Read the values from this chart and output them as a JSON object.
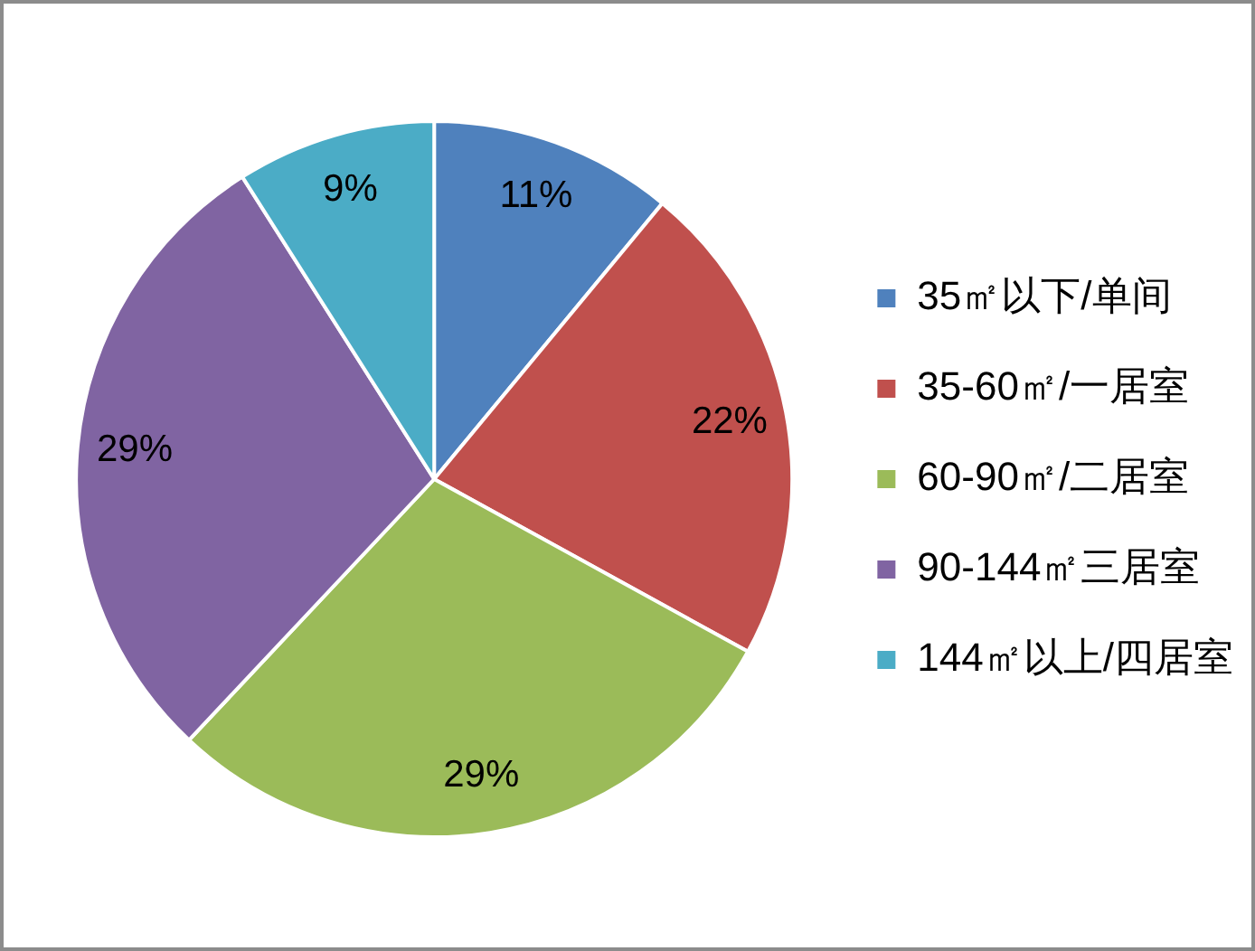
{
  "chart_data": {
    "type": "pie",
    "categories": [
      "35㎡以下/单间",
      "35-60㎡/一居室",
      "60-90㎡/二居室",
      "90-144㎡三居室",
      "144㎡以上/四居室"
    ],
    "values": [
      11,
      22,
      29,
      29,
      9
    ],
    "colors": [
      "#4f81bd",
      "#c0504d",
      "#9bbb59",
      "#8064a2",
      "#4bacc6"
    ],
    "value_labels": [
      "11%",
      "22%",
      "29%",
      "29%",
      "9%"
    ],
    "legend": "right"
  }
}
